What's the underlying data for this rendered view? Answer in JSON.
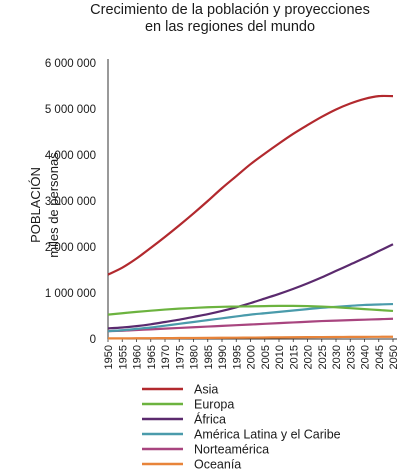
{
  "chart_data": {
    "type": "line",
    "title_lines": [
      "Crecimiento de la población y proyecciones",
      "en las regiones del mundo"
    ],
    "ylabel_lines": [
      "POBLACIÓN",
      "miles de personas"
    ],
    "xlabel": "",
    "ylim": [
      0,
      6000000
    ],
    "y_ticks": [
      0,
      1000000,
      2000000,
      3000000,
      4000000,
      5000000,
      6000000
    ],
    "y_tick_labels": [
      "0",
      "1 000 000",
      "2 000 000",
      "3 000 000",
      "4 000 000",
      "5 000 000",
      "6 000 000"
    ],
    "x": [
      1950,
      1955,
      1960,
      1965,
      1970,
      1975,
      1980,
      1985,
      1990,
      1995,
      2000,
      2005,
      2010,
      2015,
      2020,
      2025,
      2030,
      2035,
      2040,
      2045,
      2050
    ],
    "x_tick_labels": [
      "1950",
      "1955",
      "1960",
      "1965",
      "1970",
      "1975",
      "1980",
      "1985",
      "1990",
      "1995",
      "2000",
      "2005",
      "2010",
      "2015",
      "2020",
      "2025",
      "2030",
      "2035",
      "2040",
      "2045",
      "2050"
    ],
    "grid": false,
    "legend_position": "bottom",
    "series": [
      {
        "name": "Asia",
        "color": "#b2292e",
        "values": [
          1400000,
          1550000,
          1750000,
          1980000,
          2220000,
          2470000,
          2730000,
          3000000,
          3280000,
          3540000,
          3800000,
          4030000,
          4250000,
          4460000,
          4650000,
          4830000,
          4990000,
          5120000,
          5220000,
          5280000,
          5280000
        ]
      },
      {
        "name": "Europa",
        "color": "#6cb33f",
        "values": [
          530000,
          560000,
          590000,
          615000,
          640000,
          660000,
          675000,
          690000,
          700000,
          705000,
          710000,
          715000,
          720000,
          720000,
          715000,
          705000,
          690000,
          670000,
          650000,
          630000,
          610000
        ]
      },
      {
        "name": "África",
        "color": "#5b2a6e",
        "values": [
          230000,
          250000,
          280000,
          320000,
          370000,
          420000,
          480000,
          540000,
          610000,
          690000,
          780000,
          880000,
          980000,
          1090000,
          1210000,
          1340000,
          1480000,
          1620000,
          1760000,
          1910000,
          2060000
        ]
      },
      {
        "name": "América Latina y el Caribe",
        "color": "#4a9bab",
        "values": [
          170000,
          190000,
          220000,
          250000,
          290000,
          330000,
          370000,
          410000,
          450000,
          490000,
          530000,
          560000,
          590000,
          620000,
          650000,
          680000,
          700000,
          720000,
          740000,
          750000,
          760000
        ]
      },
      {
        "name": "Norteamérica",
        "color": "#a8457f",
        "values": [
          170000,
          180000,
          195000,
          210000,
          225000,
          240000,
          255000,
          270000,
          285000,
          300000,
          315000,
          330000,
          345000,
          360000,
          375000,
          390000,
          400000,
          410000,
          420000,
          430000,
          440000
        ]
      },
      {
        "name": "Oceanía",
        "color": "#e8843a",
        "values": [
          13000,
          14000,
          16000,
          18000,
          19000,
          21000,
          23000,
          25000,
          27000,
          29000,
          31000,
          33000,
          36000,
          38000,
          40000,
          42000,
          44000,
          46000,
          47000,
          48000,
          49000
        ]
      }
    ]
  }
}
